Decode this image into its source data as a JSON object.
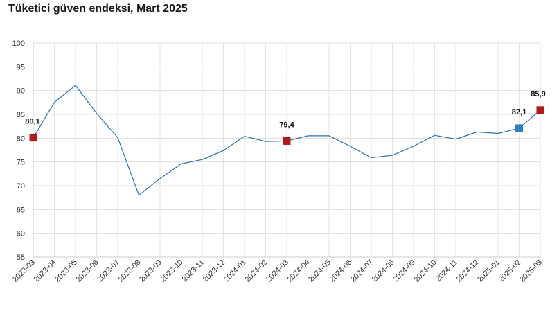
{
  "chart_data": {
    "type": "line",
    "title": "Tüketici güven endeksi, Mart 2025",
    "xlabel": "",
    "ylabel": "",
    "ylim": [
      55,
      100
    ],
    "yticks": [
      55,
      60,
      65,
      70,
      75,
      80,
      85,
      90,
      95,
      100
    ],
    "grid": true,
    "categories": [
      "2023-03",
      "2023-04",
      "2023-05",
      "2023-06",
      "2023-07",
      "2023-08",
      "2023-09",
      "2023-10",
      "2023-11",
      "2023-12",
      "2024-01",
      "2024-02",
      "2024-03",
      "2024-04",
      "2024-05",
      "2024-06",
      "2024-07",
      "2024-08",
      "2024-09",
      "2024-10",
      "2024-11",
      "2024-12",
      "2025-01",
      "2025-02",
      "2025-03"
    ],
    "series": [
      {
        "values": [
          80.1,
          87.5,
          91.1,
          85.2,
          80.1,
          68.0,
          71.5,
          74.6,
          75.5,
          77.4,
          80.4,
          79.3,
          79.4,
          80.5,
          80.5,
          78.3,
          75.9,
          76.4,
          78.3,
          80.6,
          79.8,
          81.3,
          81.0,
          82.1,
          85.9
        ],
        "color": "#2b6fb0"
      }
    ],
    "highlights": [
      {
        "index": 0,
        "label": "80,1",
        "color": "#b01c1c"
      },
      {
        "index": 12,
        "label": "79,4",
        "color": "#b01c1c"
      },
      {
        "index": 23,
        "label": "82,1",
        "color": "#2f7fc1"
      },
      {
        "index": 24,
        "label": "85,9",
        "color": "#b01c1c"
      }
    ]
  }
}
